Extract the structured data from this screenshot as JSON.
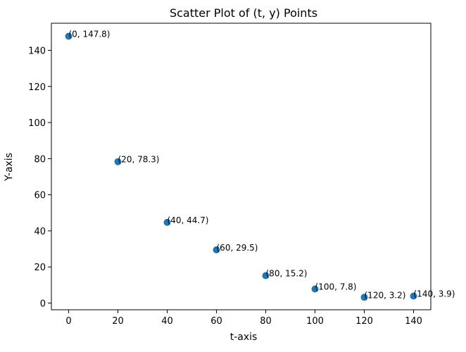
{
  "chart_data": {
    "type": "scatter",
    "title": "Scatter Plot of (t, y) Points",
    "xlabel": "t-axis",
    "ylabel": "Y-axis",
    "xlim": [
      -7,
      147
    ],
    "ylim": [
      -3.7,
      155.0
    ],
    "xticks": [
      0,
      20,
      40,
      60,
      80,
      100,
      120,
      140
    ],
    "yticks": [
      0,
      20,
      40,
      60,
      80,
      100,
      120,
      140
    ],
    "grid": false,
    "marker_color": "#1f77b4",
    "points": [
      {
        "x": 0,
        "y": 147.8,
        "label": "(0, 147.8)"
      },
      {
        "x": 20,
        "y": 78.3,
        "label": "(20, 78.3)"
      },
      {
        "x": 40,
        "y": 44.7,
        "label": "(40, 44.7)"
      },
      {
        "x": 60,
        "y": 29.5,
        "label": "(60, 29.5)"
      },
      {
        "x": 80,
        "y": 15.2,
        "label": "(80, 15.2)"
      },
      {
        "x": 100,
        "y": 7.8,
        "label": "(100, 7.8)"
      },
      {
        "x": 120,
        "y": 3.2,
        "label": "(120, 3.2)"
      },
      {
        "x": 140,
        "y": 3.9,
        "label": "(140, 3.9)"
      }
    ]
  }
}
